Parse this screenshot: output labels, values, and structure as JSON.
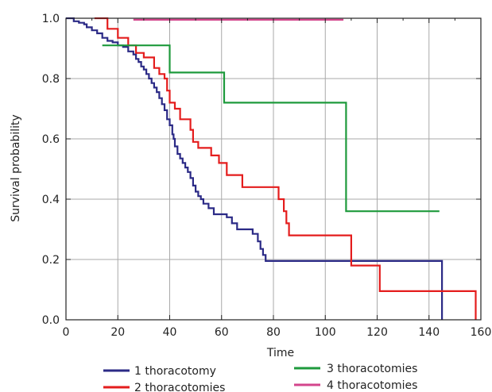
{
  "chart_data": {
    "type": "line",
    "step": true,
    "title": "",
    "xlabel": "Time",
    "ylabel": "Survival probability",
    "xlim": [
      0,
      160
    ],
    "ylim": [
      0,
      1.0
    ],
    "xticks": [
      "0",
      "20",
      "40",
      "60",
      "80",
      "100",
      "120",
      "140",
      "160"
    ],
    "yticks": [
      "0.0",
      "0.2",
      "0.4",
      "0.6",
      "0.8",
      "1.0"
    ],
    "grid": true,
    "legend_position": "bottom",
    "series": [
      {
        "name": "1 thoracotomy",
        "color": "#2b2a86",
        "points": [
          [
            0,
            1.0
          ],
          [
            3,
            0.99
          ],
          [
            5,
            0.985
          ],
          [
            7,
            0.98
          ],
          [
            8,
            0.97
          ],
          [
            10,
            0.96
          ],
          [
            12,
            0.95
          ],
          [
            14,
            0.935
          ],
          [
            16,
            0.925
          ],
          [
            18,
            0.92
          ],
          [
            20,
            0.91
          ],
          [
            22,
            0.905
          ],
          [
            24,
            0.89
          ],
          [
            26,
            0.88
          ],
          [
            27,
            0.865
          ],
          [
            28,
            0.855
          ],
          [
            29,
            0.84
          ],
          [
            30,
            0.83
          ],
          [
            31,
            0.815
          ],
          [
            32,
            0.8
          ],
          [
            33,
            0.785
          ],
          [
            34,
            0.77
          ],
          [
            35,
            0.755
          ],
          [
            36,
            0.735
          ],
          [
            37,
            0.715
          ],
          [
            38,
            0.695
          ],
          [
            39,
            0.665
          ],
          [
            40,
            0.645
          ],
          [
            41,
            0.615
          ],
          [
            41.5,
            0.6
          ],
          [
            42,
            0.575
          ],
          [
            43,
            0.55
          ],
          [
            44,
            0.535
          ],
          [
            45,
            0.52
          ],
          [
            46,
            0.505
          ],
          [
            47,
            0.49
          ],
          [
            48,
            0.47
          ],
          [
            49,
            0.445
          ],
          [
            50,
            0.425
          ],
          [
            51,
            0.41
          ],
          [
            52,
            0.4
          ],
          [
            53,
            0.385
          ],
          [
            55,
            0.37
          ],
          [
            57,
            0.35
          ],
          [
            62,
            0.34
          ],
          [
            64,
            0.32
          ],
          [
            66,
            0.3
          ],
          [
            72,
            0.285
          ],
          [
            74,
            0.26
          ],
          [
            75,
            0.235
          ],
          [
            76,
            0.215
          ],
          [
            77,
            0.195
          ],
          [
            145,
            0.195
          ],
          [
            145,
            0.0
          ]
        ]
      },
      {
        "name": "2 thoracotomies",
        "color": "#e41d1d",
        "points": [
          [
            11,
            1.0
          ],
          [
            16,
            0.965
          ],
          [
            20,
            0.935
          ],
          [
            24,
            0.91
          ],
          [
            27,
            0.885
          ],
          [
            30,
            0.87
          ],
          [
            34,
            0.835
          ],
          [
            36,
            0.815
          ],
          [
            38,
            0.8
          ],
          [
            39,
            0.76
          ],
          [
            40,
            0.72
          ],
          [
            42,
            0.7
          ],
          [
            44,
            0.665
          ],
          [
            48,
            0.63
          ],
          [
            49,
            0.59
          ],
          [
            51,
            0.57
          ],
          [
            56,
            0.545
          ],
          [
            59,
            0.52
          ],
          [
            62,
            0.48
          ],
          [
            68,
            0.44
          ],
          [
            82,
            0.4
          ],
          [
            84,
            0.36
          ],
          [
            85,
            0.32
          ],
          [
            86,
            0.28
          ],
          [
            110,
            0.28
          ],
          [
            110,
            0.18
          ],
          [
            121,
            0.18
          ],
          [
            121,
            0.095
          ],
          [
            158,
            0.095
          ],
          [
            158,
            0.0
          ]
        ]
      },
      {
        "name": "3 thoracotomies",
        "color": "#1e9a3c",
        "points": [
          [
            14,
            0.91
          ],
          [
            40,
            0.91
          ],
          [
            40,
            0.82
          ],
          [
            61,
            0.82
          ],
          [
            61,
            0.72
          ],
          [
            108,
            0.72
          ],
          [
            108,
            0.36
          ],
          [
            144,
            0.36
          ]
        ]
      },
      {
        "name": "4 thoracotomies",
        "color": "#d3458c",
        "points": [
          [
            26,
            0.995
          ],
          [
            107,
            0.995
          ]
        ]
      }
    ]
  }
}
